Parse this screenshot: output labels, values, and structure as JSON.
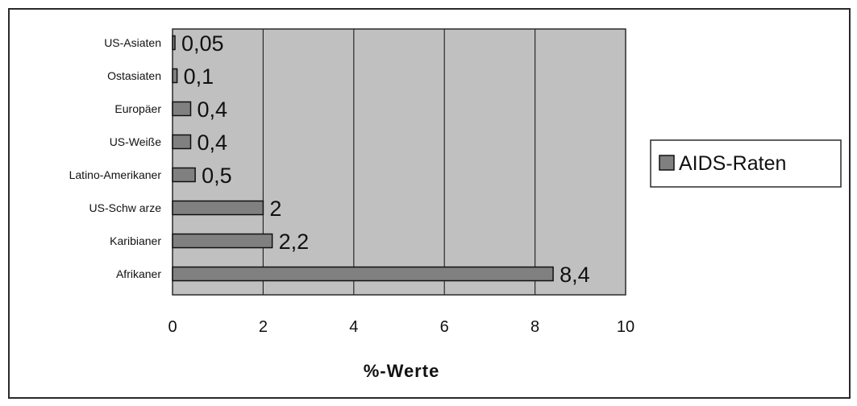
{
  "chart_data": {
    "type": "bar",
    "orientation": "horizontal",
    "categories": [
      "US-Asiaten",
      "Ostasiaten",
      "Europäer",
      "US-Weiße",
      "Latino-Amerikaner",
      "US-Schw arze",
      "Karibianer",
      "Afrikaner"
    ],
    "series": [
      {
        "name": "AIDS-Raten",
        "values": [
          0.05,
          0.1,
          0.4,
          0.4,
          0.5,
          2,
          2.2,
          8.4
        ],
        "data_labels": [
          "0,05",
          "0,1",
          "0,4",
          "0,4",
          "0,5",
          "2",
          "2,2",
          "8,4"
        ]
      }
    ],
    "xlabel": "%-Werte",
    "ylabel": "",
    "xlim": [
      0,
      10
    ],
    "x_ticks": [
      0,
      2,
      4,
      6,
      8,
      10
    ],
    "x_tick_labels": [
      "0",
      "2",
      "4",
      "6",
      "8",
      "10"
    ],
    "grid": "vertical",
    "legend_position": "right",
    "colors": {
      "plot_background": "#c0c0c0",
      "bar_fill": "#808080",
      "gridline": "#2a2a2a",
      "border": "#2a2a2a"
    }
  }
}
